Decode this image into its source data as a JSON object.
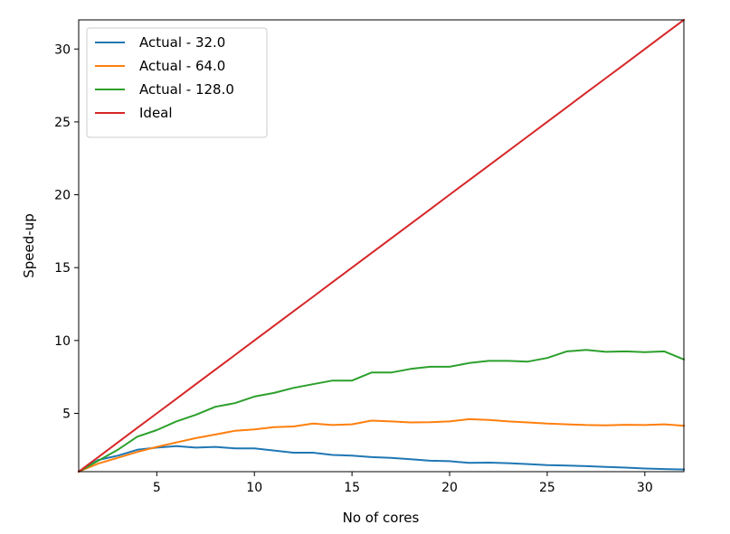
{
  "chart_data": {
    "type": "line",
    "title": "",
    "xlabel": "No of cores",
    "ylabel": "Speed-up",
    "xlim": [
      1,
      32
    ],
    "ylim": [
      1,
      32
    ],
    "xticks": [
      5,
      10,
      15,
      20,
      25,
      30
    ],
    "yticks": [
      5,
      10,
      15,
      20,
      25,
      30
    ],
    "xtick_labels": [
      "5",
      "10",
      "15",
      "20",
      "25",
      "30"
    ],
    "ytick_labels": [
      "5",
      "10",
      "15",
      "20",
      "25",
      "30"
    ],
    "grid": false,
    "legend_position": "top-left",
    "x": [
      1,
      2,
      3,
      4,
      5,
      6,
      7,
      8,
      9,
      10,
      11,
      12,
      13,
      14,
      15,
      16,
      17,
      18,
      19,
      20,
      21,
      22,
      23,
      24,
      25,
      26,
      27,
      28,
      29,
      30,
      31,
      32
    ],
    "series": [
      {
        "name": "Actual - 32.0",
        "color": "#1f77b4",
        "values": [
          1.0,
          1.8,
          2.1,
          2.5,
          2.65,
          2.75,
          2.65,
          2.7,
          2.6,
          2.6,
          2.45,
          2.3,
          2.3,
          2.15,
          2.1,
          2.0,
          1.95,
          1.85,
          1.75,
          1.72,
          1.6,
          1.62,
          1.58,
          1.52,
          1.45,
          1.42,
          1.38,
          1.33,
          1.28,
          1.22,
          1.18,
          1.15
        ]
      },
      {
        "name": "Actual - 64.0",
        "color": "#ff7f0e",
        "values": [
          1.0,
          1.55,
          1.95,
          2.35,
          2.7,
          3.0,
          3.3,
          3.55,
          3.8,
          3.9,
          4.05,
          4.1,
          4.3,
          4.2,
          4.25,
          4.5,
          4.45,
          4.38,
          4.4,
          4.45,
          4.6,
          4.55,
          4.45,
          4.38,
          4.3,
          4.25,
          4.2,
          4.18,
          4.22,
          4.2,
          4.25,
          4.15
        ]
      },
      {
        "name": "Actual - 128.0",
        "color": "#2ca02c",
        "values": [
          1.0,
          1.75,
          2.5,
          3.4,
          3.85,
          4.45,
          4.9,
          5.45,
          5.7,
          6.15,
          6.4,
          6.75,
          7.0,
          7.25,
          7.25,
          7.8,
          7.8,
          8.05,
          8.2,
          8.2,
          8.45,
          8.6,
          8.6,
          8.55,
          8.8,
          9.25,
          9.35,
          9.22,
          9.25,
          9.2,
          9.25,
          8.7
        ]
      },
      {
        "name": "Ideal",
        "color": "#d62728",
        "values": [
          1,
          2,
          3,
          4,
          5,
          6,
          7,
          8,
          9,
          10,
          11,
          12,
          13,
          14,
          15,
          16,
          17,
          18,
          19,
          20,
          21,
          22,
          23,
          24,
          25,
          26,
          27,
          28,
          29,
          30,
          31,
          32
        ]
      }
    ]
  }
}
